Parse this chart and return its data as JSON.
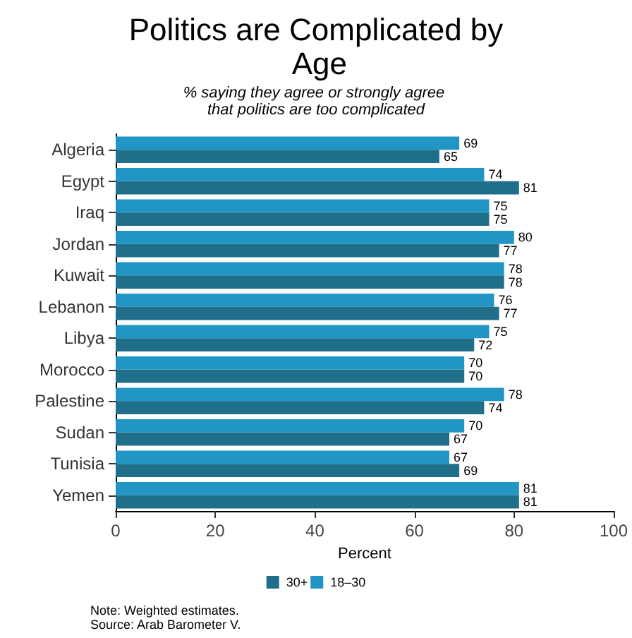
{
  "chart_data": {
    "type": "bar",
    "orientation": "horizontal",
    "title": "Politics are Complicated by Age",
    "subtitle": "% saying they agree or strongly agree that politics are too complicated",
    "xlabel": "Percent",
    "categories": [
      "Algeria",
      "Egypt",
      "Iraq",
      "Jordan",
      "Kuwait",
      "Lebanon",
      "Libya",
      "Morocco",
      "Palestine",
      "Sudan",
      "Tunisia",
      "Yemen"
    ],
    "series": [
      {
        "name": "18–30",
        "color": "#2196c4",
        "values": [
          69,
          74,
          75,
          80,
          78,
          76,
          75,
          70,
          78,
          70,
          67,
          81
        ]
      },
      {
        "name": "30+",
        "color": "#1f6f8b",
        "values": [
          65,
          81,
          75,
          77,
          78,
          77,
          72,
          70,
          74,
          67,
          69,
          81
        ]
      }
    ],
    "xlim": [
      0,
      100
    ],
    "xticks": [
      0,
      20,
      40,
      60,
      80,
      100
    ],
    "grid": false,
    "legend": "bottom",
    "data_labels": true,
    "annotations": [
      "Note: Weighted estimates.",
      "Source: Arab Barometer V."
    ]
  }
}
